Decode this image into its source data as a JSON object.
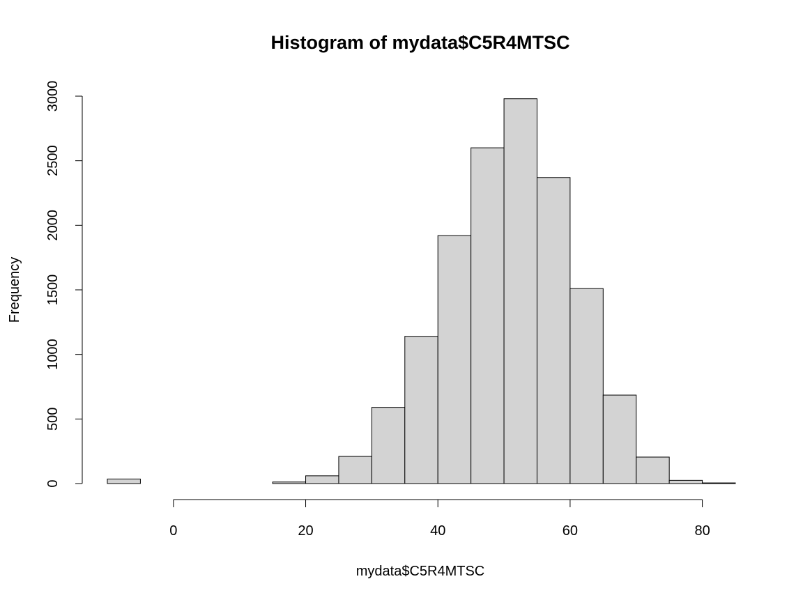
{
  "chart_data": {
    "type": "bar",
    "title": "Histogram of mydata$C5R4MTSC",
    "xlabel": "mydata$C5R4MTSC",
    "ylabel": "Frequency",
    "bin_width": 5,
    "bins": [
      {
        "x0": -10,
        "x1": -5,
        "count": 35
      },
      {
        "x0": -5,
        "x1": 0,
        "count": 0
      },
      {
        "x0": 0,
        "x1": 5,
        "count": 0
      },
      {
        "x0": 5,
        "x1": 10,
        "count": 0
      },
      {
        "x0": 10,
        "x1": 15,
        "count": 0
      },
      {
        "x0": 15,
        "x1": 20,
        "count": 12
      },
      {
        "x0": 20,
        "x1": 25,
        "count": 60
      },
      {
        "x0": 25,
        "x1": 30,
        "count": 210
      },
      {
        "x0": 30,
        "x1": 35,
        "count": 590
      },
      {
        "x0": 35,
        "x1": 40,
        "count": 1140
      },
      {
        "x0": 40,
        "x1": 45,
        "count": 1920
      },
      {
        "x0": 45,
        "x1": 50,
        "count": 2600
      },
      {
        "x0": 50,
        "x1": 55,
        "count": 2980
      },
      {
        "x0": 55,
        "x1": 60,
        "count": 2370
      },
      {
        "x0": 60,
        "x1": 65,
        "count": 1510
      },
      {
        "x0": 65,
        "x1": 70,
        "count": 685
      },
      {
        "x0": 70,
        "x1": 75,
        "count": 205
      },
      {
        "x0": 75,
        "x1": 80,
        "count": 25
      },
      {
        "x0": 80,
        "x1": 85,
        "count": 5
      }
    ],
    "x_ticks": [
      0,
      20,
      40,
      60,
      80
    ],
    "y_ticks": [
      0,
      500,
      1000,
      1500,
      2000,
      2500,
      3000
    ],
    "xlim": [
      -10,
      85
    ],
    "ylim": [
      0,
      3000
    ],
    "bar_fill": "#d3d3d3",
    "bar_stroke": "#000000",
    "grid": false,
    "legend": "none"
  }
}
